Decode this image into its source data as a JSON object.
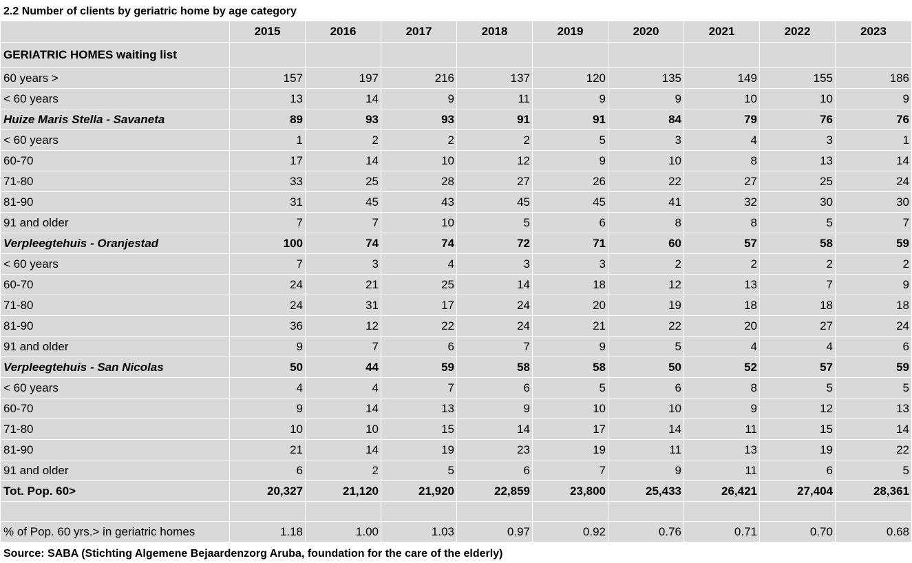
{
  "title": "2.2  Number of clients by geriatric home by age category",
  "source": "Source: SABA (Stichting Algemene Bejaardenzorg Aruba, foundation for the care of the elderly)",
  "years": [
    "2015",
    "2016",
    "2017",
    "2018",
    "2019",
    "2020",
    "2021",
    "2022",
    "2023"
  ],
  "section_header": "GERIATRIC HOMES waiting list",
  "rows": [
    {
      "type": "row",
      "label": "60 years >",
      "values": [
        "157",
        "197",
        "216",
        "137",
        "120",
        "135",
        "149",
        "155",
        "186"
      ]
    },
    {
      "type": "row",
      "label": "< 60 years",
      "values": [
        "13",
        "14",
        "9",
        "11",
        "9",
        "9",
        "10",
        "10",
        "9"
      ]
    },
    {
      "type": "group",
      "label": "Huize Maris Stella - Savaneta",
      "values": [
        "89",
        "93",
        "93",
        "91",
        "91",
        "84",
        "79",
        "76",
        "76"
      ]
    },
    {
      "type": "row",
      "label": "< 60 years",
      "values": [
        "1",
        "2",
        "2",
        "2",
        "5",
        "3",
        "4",
        "3",
        "1"
      ]
    },
    {
      "type": "row",
      "label": "60-70",
      "values": [
        "17",
        "14",
        "10",
        "12",
        "9",
        "10",
        "8",
        "13",
        "14"
      ]
    },
    {
      "type": "row",
      "label": "71-80",
      "values": [
        "33",
        "25",
        "28",
        "27",
        "26",
        "22",
        "27",
        "25",
        "24"
      ]
    },
    {
      "type": "row",
      "label": "81-90",
      "values": [
        "31",
        "45",
        "43",
        "45",
        "45",
        "41",
        "32",
        "30",
        "30"
      ]
    },
    {
      "type": "row",
      "label": "91 and older",
      "values": [
        "7",
        "7",
        "10",
        "5",
        "6",
        "8",
        "8",
        "5",
        "7"
      ]
    },
    {
      "type": "group",
      "label": "Verpleegtehuis - Oranjestad",
      "values": [
        "100",
        "74",
        "74",
        "72",
        "71",
        "60",
        "57",
        "58",
        "59"
      ]
    },
    {
      "type": "row",
      "label": "< 60 years",
      "values": [
        "7",
        "3",
        "4",
        "3",
        "3",
        "2",
        "2",
        "2",
        "2"
      ]
    },
    {
      "type": "row",
      "label": "60-70",
      "values": [
        "24",
        "21",
        "25",
        "14",
        "18",
        "12",
        "13",
        "7",
        "9"
      ]
    },
    {
      "type": "row",
      "label": "71-80",
      "values": [
        "24",
        "31",
        "17",
        "24",
        "20",
        "19",
        "18",
        "18",
        "18"
      ]
    },
    {
      "type": "row",
      "label": "81-90",
      "values": [
        "36",
        "12",
        "22",
        "24",
        "21",
        "22",
        "20",
        "27",
        "24"
      ]
    },
    {
      "type": "row",
      "label": "91 and older",
      "values": [
        "9",
        "7",
        "6",
        "7",
        "9",
        "5",
        "4",
        "4",
        "6"
      ]
    },
    {
      "type": "group",
      "label": "Verpleegtehuis - San Nicolas",
      "values": [
        "50",
        "44",
        "59",
        "58",
        "58",
        "50",
        "52",
        "57",
        "59"
      ]
    },
    {
      "type": "row",
      "label": "< 60 years",
      "values": [
        "4",
        "4",
        "7",
        "6",
        "5",
        "6",
        "8",
        "5",
        "5"
      ]
    },
    {
      "type": "row",
      "label": "60-70",
      "values": [
        "9",
        "14",
        "13",
        "9",
        "10",
        "10",
        "9",
        "12",
        "13"
      ]
    },
    {
      "type": "row",
      "label": "71-80",
      "values": [
        "10",
        "10",
        "15",
        "14",
        "17",
        "14",
        "11",
        "15",
        "14"
      ]
    },
    {
      "type": "row",
      "label": "81-90",
      "values": [
        "21",
        "14",
        "19",
        "23",
        "19",
        "11",
        "13",
        "19",
        "22"
      ]
    },
    {
      "type": "row",
      "label": "91 and older",
      "values": [
        "6",
        "2",
        "5",
        "6",
        "7",
        "9",
        "11",
        "6",
        "5"
      ]
    },
    {
      "type": "total",
      "label": "Tot. Pop. 60>",
      "values": [
        "20,327",
        "21,120",
        "21,920",
        "22,859",
        "23,800",
        "25,433",
        "26,421",
        "27,404",
        "28,361"
      ]
    },
    {
      "type": "blank",
      "label": "",
      "values": [
        "",
        "",
        "",
        "",
        "",
        "",
        "",
        "",
        ""
      ]
    },
    {
      "type": "row",
      "label": "% of Pop. 60 yrs.> in geriatric homes",
      "values": [
        "1.18",
        "1.00",
        "1.03",
        "0.97",
        "0.92",
        "0.76",
        "0.71",
        "0.70",
        "0.68"
      ]
    }
  ]
}
